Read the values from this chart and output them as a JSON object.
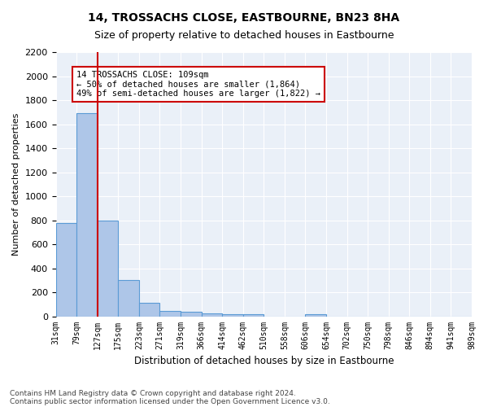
{
  "title": "14, TROSSACHS CLOSE, EASTBOURNE, BN23 8HA",
  "subtitle": "Size of property relative to detached houses in Eastbourne",
  "xlabel": "Distribution of detached houses by size in Eastbourne",
  "ylabel": "Number of detached properties",
  "footer1": "Contains HM Land Registry data © Crown copyright and database right 2024.",
  "footer2": "Contains public sector information licensed under the Open Government Licence v3.0.",
  "bin_labels": [
    "31sqm",
    "79sqm",
    "127sqm",
    "175sqm",
    "223sqm",
    "271sqm",
    "319sqm",
    "366sqm",
    "414sqm",
    "462sqm",
    "510sqm",
    "558sqm",
    "606sqm",
    "654sqm",
    "702sqm",
    "750sqm",
    "798sqm",
    "846sqm",
    "894sqm",
    "941sqm",
    "989sqm"
  ],
  "bar_values": [
    775,
    1690,
    800,
    300,
    110,
    45,
    35,
    25,
    20,
    20,
    0,
    0,
    20,
    0,
    0,
    0,
    0,
    0,
    0,
    0
  ],
  "bar_color": "#aec6e8",
  "bar_edge_color": "#5b9bd5",
  "vline_color": "#cc0000",
  "vline_x": 1.5,
  "ylim": [
    0,
    2200
  ],
  "yticks": [
    0,
    200,
    400,
    600,
    800,
    1000,
    1200,
    1400,
    1600,
    1800,
    2000,
    2200
  ],
  "annotation_text": "14 TROSSACHS CLOSE: 109sqm\n← 50% of detached houses are smaller (1,864)\n49% of semi-detached houses are larger (1,822) →",
  "annotation_box_color": "#ffffff",
  "annotation_box_edge": "#cc0000",
  "bg_color": "#eaf0f8"
}
